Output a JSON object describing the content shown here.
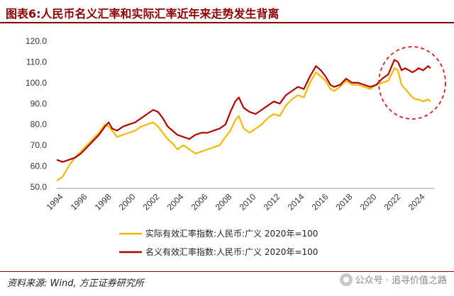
{
  "title": "图表6:人民币名义汇率和实际汇率近年来走势发生背离",
  "source": "资料来源: Wind, 方正证券研究所",
  "watermark": "公众号 · 追寻价值之路",
  "colors": {
    "real": "#f5b800",
    "nominal": "#b00000",
    "highlight": "#d42020",
    "title": "#8b0000"
  },
  "chart_data": {
    "type": "line",
    "title": "图表6:人民币名义汇率和实际汇率近年来走势发生背离",
    "ylim": [
      50,
      120
    ],
    "xlim": [
      1994,
      2025.3
    ],
    "yticks": [
      "50.0",
      "60.0",
      "70.0",
      "80.0",
      "90.0",
      "100.0",
      "110.0",
      "120.0"
    ],
    "xticks": [
      "1994",
      "1996",
      "1998",
      "2000",
      "2002",
      "2004",
      "2006",
      "2008",
      "2010",
      "2012",
      "2014",
      "2016",
      "2018",
      "2020",
      "2022",
      "2024"
    ],
    "grid": false,
    "legend_position": "bottom-center",
    "annotation": "dashed red ellipse highlighting divergence 2021-2025",
    "series": [
      {
        "name": "实际有效汇率指数:人民币:广义 2020年=100",
        "color": "#f5b800",
        "points": [
          [
            1994.0,
            53
          ],
          [
            1994.5,
            55
          ],
          [
            1995.0,
            60
          ],
          [
            1995.5,
            64
          ],
          [
            1996.0,
            67
          ],
          [
            1996.5,
            70
          ],
          [
            1997.0,
            73
          ],
          [
            1997.5,
            76
          ],
          [
            1998.0,
            80
          ],
          [
            1998.3,
            79
          ],
          [
            1998.6,
            77
          ],
          [
            1999.0,
            74
          ],
          [
            1999.5,
            75
          ],
          [
            2000.0,
            76
          ],
          [
            2000.5,
            77
          ],
          [
            2001.0,
            79
          ],
          [
            2001.5,
            80
          ],
          [
            2002.0,
            81
          ],
          [
            2002.4,
            79
          ],
          [
            2002.8,
            76
          ],
          [
            2003.2,
            73
          ],
          [
            2003.6,
            71
          ],
          [
            2004.0,
            68
          ],
          [
            2004.5,
            70
          ],
          [
            2005.0,
            68
          ],
          [
            2005.5,
            66
          ],
          [
            2006.0,
            67
          ],
          [
            2006.5,
            68
          ],
          [
            2007.0,
            69
          ],
          [
            2007.5,
            70
          ],
          [
            2008.0,
            74
          ],
          [
            2008.4,
            77
          ],
          [
            2008.8,
            82
          ],
          [
            2009.1,
            84
          ],
          [
            2009.5,
            78
          ],
          [
            2010.0,
            76
          ],
          [
            2010.5,
            78
          ],
          [
            2011.0,
            80
          ],
          [
            2011.5,
            83
          ],
          [
            2012.0,
            85
          ],
          [
            2012.5,
            84
          ],
          [
            2013.0,
            89
          ],
          [
            2013.5,
            92
          ],
          [
            2014.0,
            94
          ],
          [
            2014.5,
            93
          ],
          [
            2015.0,
            100
          ],
          [
            2015.5,
            105
          ],
          [
            2015.9,
            103
          ],
          [
            2016.3,
            101
          ],
          [
            2016.7,
            97
          ],
          [
            2017.0,
            96
          ],
          [
            2017.5,
            98
          ],
          [
            2018.0,
            101
          ],
          [
            2018.5,
            99
          ],
          [
            2019.0,
            99
          ],
          [
            2019.5,
            98
          ],
          [
            2020.0,
            97
          ],
          [
            2020.5,
            99
          ],
          [
            2021.0,
            100
          ],
          [
            2021.5,
            101
          ],
          [
            2022.0,
            107
          ],
          [
            2022.3,
            106
          ],
          [
            2022.6,
            99
          ],
          [
            2022.9,
            97
          ],
          [
            2023.2,
            95
          ],
          [
            2023.5,
            93
          ],
          [
            2023.8,
            92
          ],
          [
            2024.0,
            92
          ],
          [
            2024.4,
            91
          ],
          [
            2024.8,
            92
          ],
          [
            2025.0,
            91
          ]
        ]
      },
      {
        "name": "名义有效汇率指数:人民币:广义 2020年=100",
        "color": "#b00000",
        "points": [
          [
            1994.0,
            63
          ],
          [
            1994.5,
            62
          ],
          [
            1995.0,
            63
          ],
          [
            1995.5,
            64
          ],
          [
            1996.0,
            66
          ],
          [
            1996.5,
            69
          ],
          [
            1997.0,
            72
          ],
          [
            1997.5,
            75
          ],
          [
            1998.0,
            79
          ],
          [
            1998.3,
            81
          ],
          [
            1998.6,
            78
          ],
          [
            1999.0,
            77
          ],
          [
            1999.5,
            79
          ],
          [
            2000.0,
            80
          ],
          [
            2000.5,
            81
          ],
          [
            2001.0,
            83
          ],
          [
            2001.5,
            85
          ],
          [
            2002.0,
            87
          ],
          [
            2002.4,
            86
          ],
          [
            2002.8,
            83
          ],
          [
            2003.2,
            79
          ],
          [
            2003.6,
            77
          ],
          [
            2004.0,
            75
          ],
          [
            2004.5,
            74
          ],
          [
            2005.0,
            73
          ],
          [
            2005.5,
            75
          ],
          [
            2006.0,
            76
          ],
          [
            2006.5,
            76
          ],
          [
            2007.0,
            77
          ],
          [
            2007.5,
            78
          ],
          [
            2008.0,
            80
          ],
          [
            2008.4,
            86
          ],
          [
            2008.8,
            91
          ],
          [
            2009.1,
            93
          ],
          [
            2009.5,
            88
          ],
          [
            2010.0,
            86
          ],
          [
            2010.5,
            85
          ],
          [
            2011.0,
            87
          ],
          [
            2011.5,
            89
          ],
          [
            2012.0,
            91
          ],
          [
            2012.5,
            90
          ],
          [
            2013.0,
            94
          ],
          [
            2013.5,
            96
          ],
          [
            2014.0,
            98
          ],
          [
            2014.5,
            97
          ],
          [
            2015.0,
            103
          ],
          [
            2015.5,
            108
          ],
          [
            2015.9,
            106
          ],
          [
            2016.3,
            103
          ],
          [
            2016.7,
            99
          ],
          [
            2017.0,
            98
          ],
          [
            2017.5,
            99
          ],
          [
            2018.0,
            102
          ],
          [
            2018.5,
            100
          ],
          [
            2019.0,
            100
          ],
          [
            2019.5,
            99
          ],
          [
            2020.0,
            98
          ],
          [
            2020.5,
            99
          ],
          [
            2021.0,
            102
          ],
          [
            2021.5,
            104
          ],
          [
            2022.0,
            111
          ],
          [
            2022.3,
            110
          ],
          [
            2022.6,
            106
          ],
          [
            2022.9,
            107
          ],
          [
            2023.2,
            106
          ],
          [
            2023.5,
            105
          ],
          [
            2023.8,
            106
          ],
          [
            2024.0,
            107
          ],
          [
            2024.4,
            106
          ],
          [
            2024.8,
            108
          ],
          [
            2025.0,
            107
          ]
        ]
      }
    ]
  }
}
